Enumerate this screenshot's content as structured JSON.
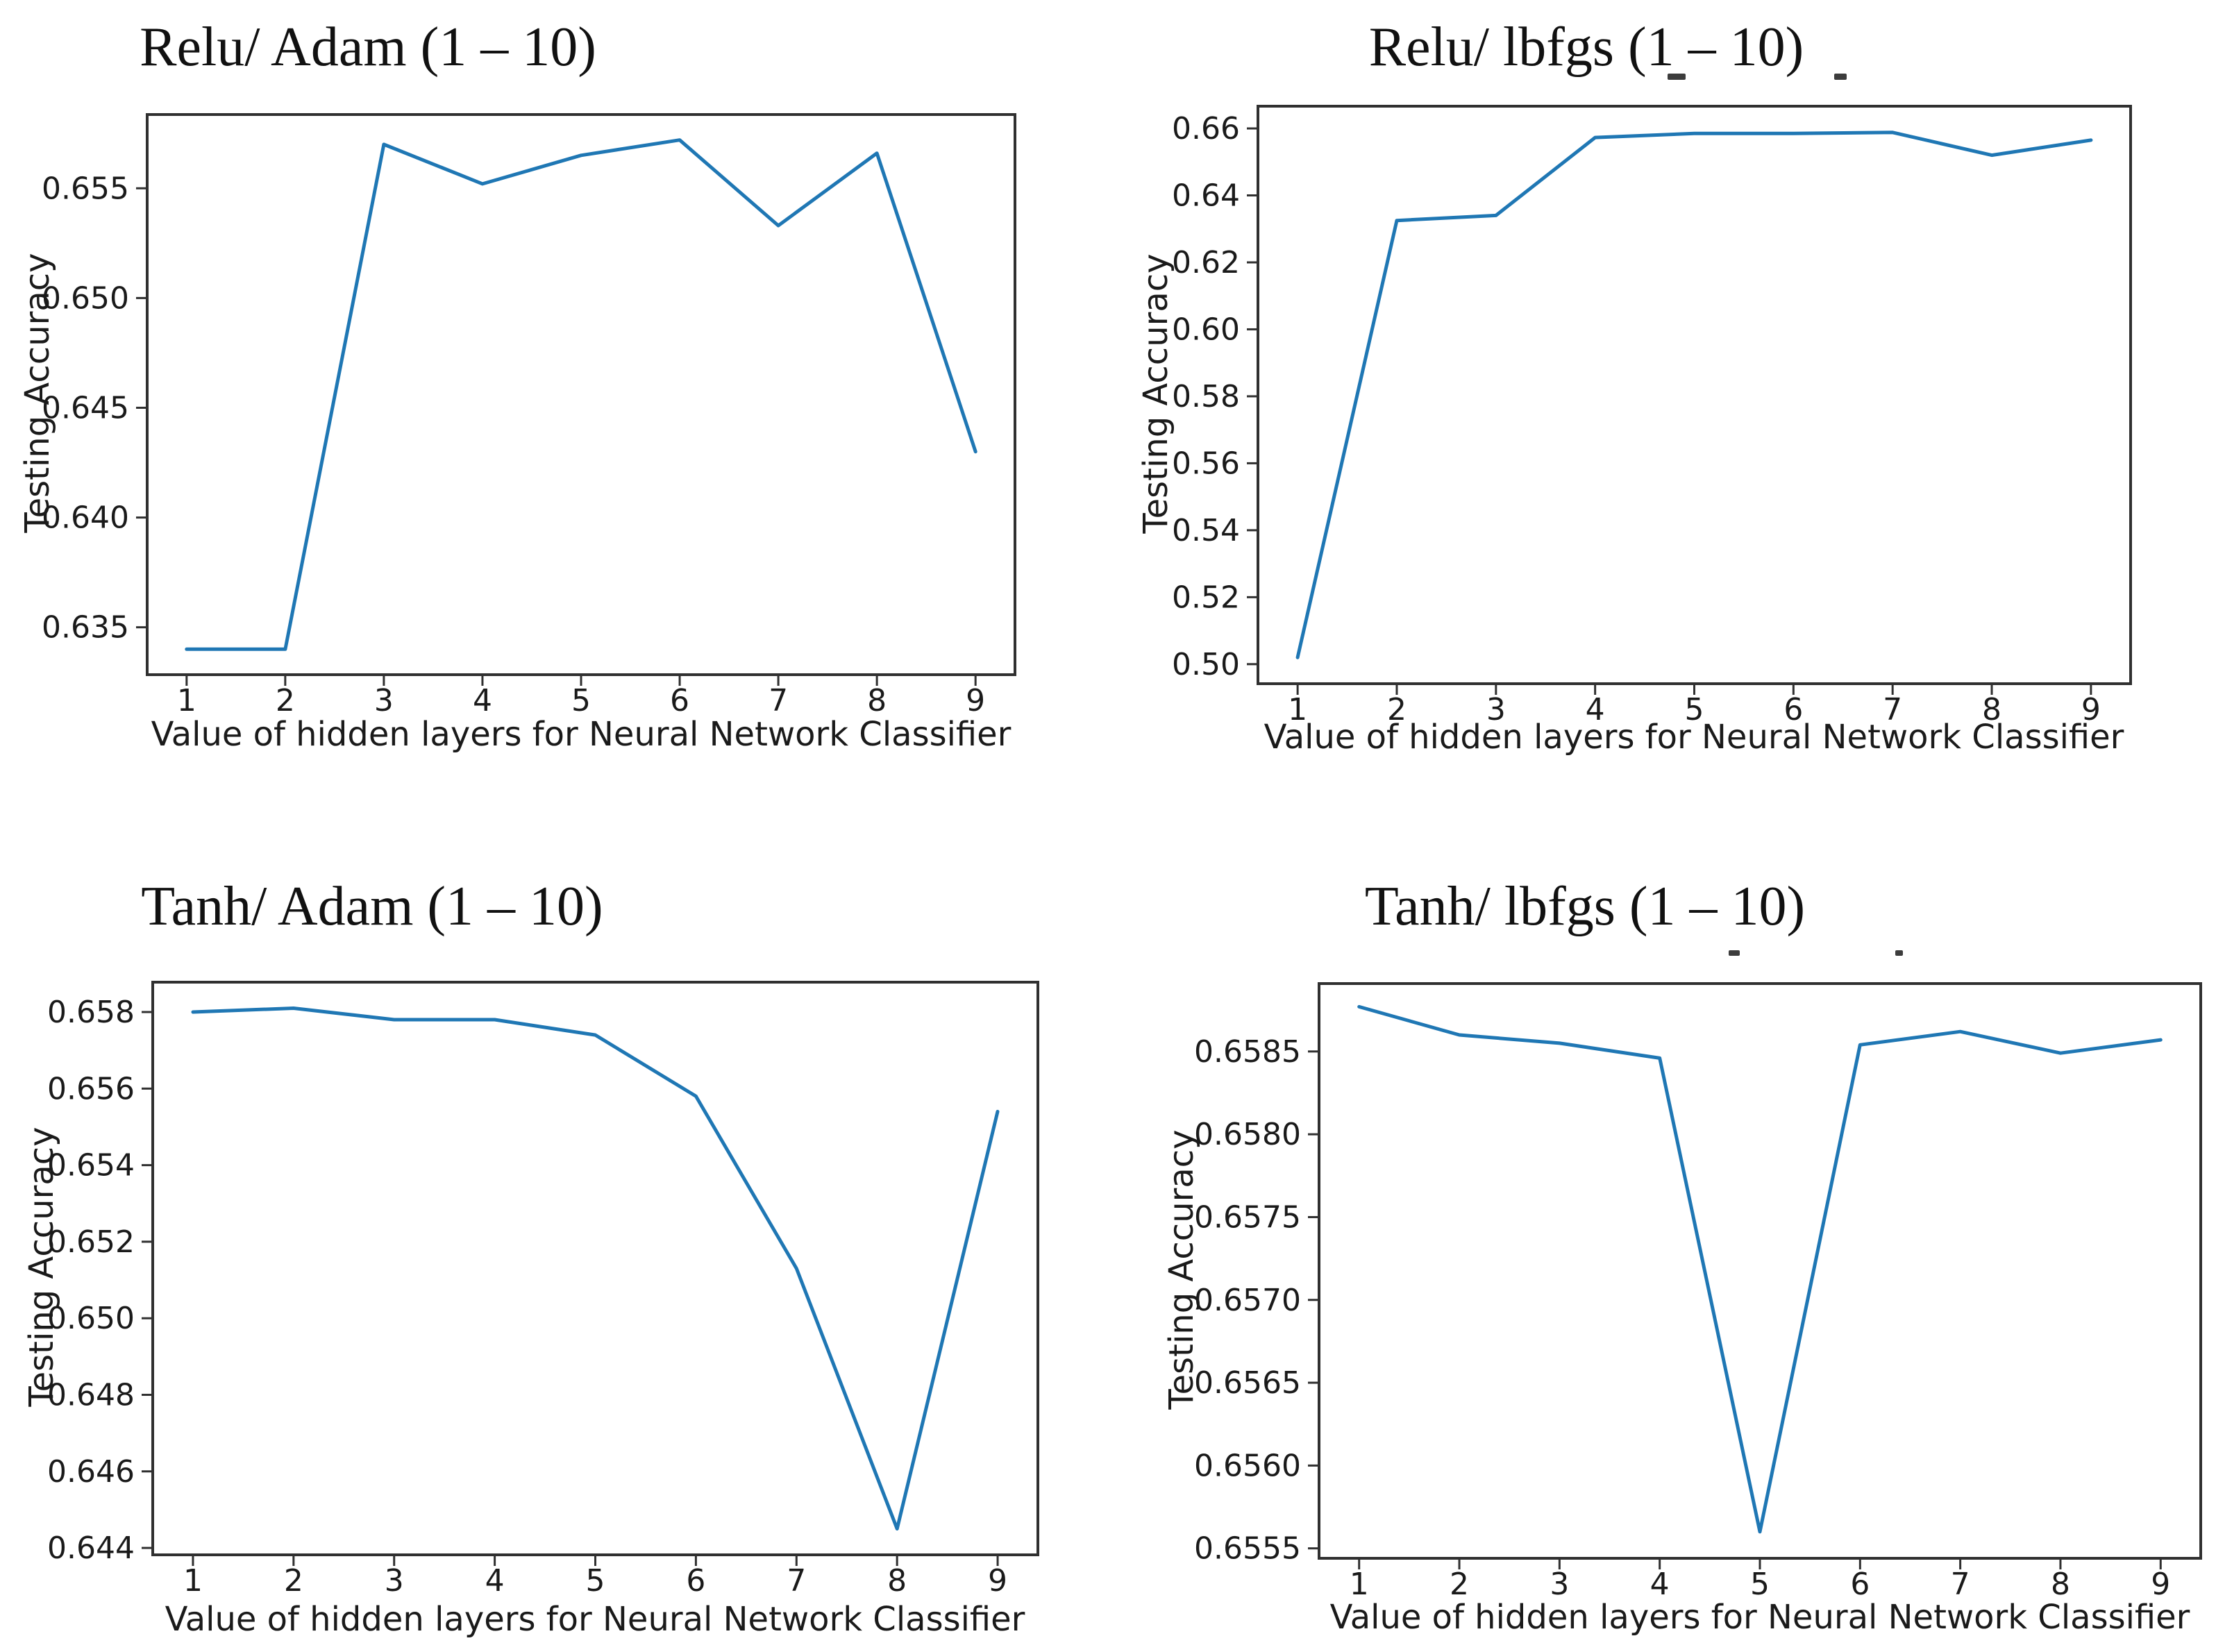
{
  "figure": {
    "description": "2x2 grid of matplotlib line plots comparing neural network testing accuracy",
    "background": "#ffffff"
  },
  "colors": {
    "line": "#1f77b4",
    "axis": "#303030",
    "text": "#1a1a1a",
    "remnant": "#3c3c3c"
  },
  "chart_data": [
    {
      "id": "relu-adam",
      "type": "line",
      "title": "Relu/ Adam (1 – 10)",
      "xlabel": "Value of hidden layers for Neural Network Classifier",
      "ylabel": "Testing Accuracy",
      "x": [
        1,
        2,
        3,
        4,
        5,
        6,
        7,
        8,
        9
      ],
      "values": [
        0.634,
        0.634,
        0.657,
        0.6552,
        0.6565,
        0.6572,
        0.6533,
        0.6566,
        0.643
      ],
      "xticks": [
        "1",
        "2",
        "3",
        "4",
        "5",
        "6",
        "7",
        "8",
        "9"
      ],
      "yticks": [
        0.635,
        0.64,
        0.645,
        0.65,
        0.655
      ],
      "ytick_labels": [
        "0.635",
        "0.640",
        "0.645",
        "0.650",
        "0.655"
      ],
      "xlim": [
        0.6,
        9.4
      ],
      "ylim": [
        0.63284,
        0.65836
      ],
      "line_color": "#1f77b4",
      "grid": false,
      "legend": null
    },
    {
      "id": "relu-lbfgs",
      "type": "line",
      "title": "Relu/ lbfgs (1 – 10)",
      "xlabel": "Value of hidden layers for Neural Network Classifier",
      "ylabel": "Testing Accuracy",
      "x": [
        1,
        2,
        3,
        4,
        5,
        6,
        7,
        8,
        9
      ],
      "values": [
        0.502,
        0.6325,
        0.634,
        0.6573,
        0.6585,
        0.6585,
        0.6588,
        0.652,
        0.6565
      ],
      "xticks": [
        "1",
        "2",
        "3",
        "4",
        "5",
        "6",
        "7",
        "8",
        "9"
      ],
      "yticks": [
        0.5,
        0.52,
        0.54,
        0.56,
        0.58,
        0.6,
        0.62,
        0.64,
        0.66
      ],
      "ytick_labels": [
        "0.50",
        "0.52",
        "0.54",
        "0.56",
        "0.58",
        "0.60",
        "0.62",
        "0.64",
        "0.66"
      ],
      "xlim": [
        0.6,
        9.4
      ],
      "ylim": [
        0.49416,
        0.66664
      ],
      "line_color": "#1f77b4",
      "grid": false,
      "legend": null,
      "has_cropped_text_remnants": true
    },
    {
      "id": "tanh-adam",
      "type": "line",
      "title": "Tanh/ Adam (1 – 10)",
      "xlabel": "Value of hidden layers for Neural Network Classifier",
      "ylabel": "Testing Accuracy",
      "x": [
        1,
        2,
        3,
        4,
        5,
        6,
        7,
        8,
        9
      ],
      "values": [
        0.658,
        0.6581,
        0.6578,
        0.6578,
        0.6574,
        0.6558,
        0.6513,
        0.6445,
        0.6554
      ],
      "xticks": [
        "1",
        "2",
        "3",
        "4",
        "5",
        "6",
        "7",
        "8",
        "9"
      ],
      "yticks": [
        0.644,
        0.646,
        0.648,
        0.65,
        0.652,
        0.654,
        0.656,
        0.658
      ],
      "ytick_labels": [
        "0.644",
        "0.646",
        "0.648",
        "0.650",
        "0.652",
        "0.654",
        "0.656",
        "0.658"
      ],
      "xlim": [
        0.6,
        9.4
      ],
      "ylim": [
        0.64382,
        0.65878
      ],
      "line_color": "#1f77b4",
      "grid": false,
      "legend": null
    },
    {
      "id": "tanh-lbfgs",
      "type": "line",
      "title": "Tanh/ lbfgs (1 – 10)",
      "xlabel": "Value of hidden layers for Neural Network Classifier",
      "ylabel": "Testing Accuracy",
      "x": [
        1,
        2,
        3,
        4,
        5,
        6,
        7,
        8,
        9
      ],
      "values": [
        0.65877,
        0.6586,
        0.65855,
        0.65846,
        0.6556,
        0.65854,
        0.65862,
        0.65849,
        0.65857
      ],
      "xticks": [
        "1",
        "2",
        "3",
        "4",
        "5",
        "6",
        "7",
        "8",
        "9"
      ],
      "yticks": [
        0.6555,
        0.656,
        0.6565,
        0.657,
        0.6575,
        0.658,
        0.6585
      ],
      "ytick_labels": [
        "0.6555",
        "0.6560",
        "0.6565",
        "0.6570",
        "0.6575",
        "0.6580",
        "0.6585"
      ],
      "xlim": [
        0.6,
        9.4
      ],
      "ylim": [
        0.65544,
        0.65891
      ],
      "line_color": "#1f77b4",
      "grid": false,
      "legend": null,
      "has_cropped_text_remnants": true
    }
  ]
}
